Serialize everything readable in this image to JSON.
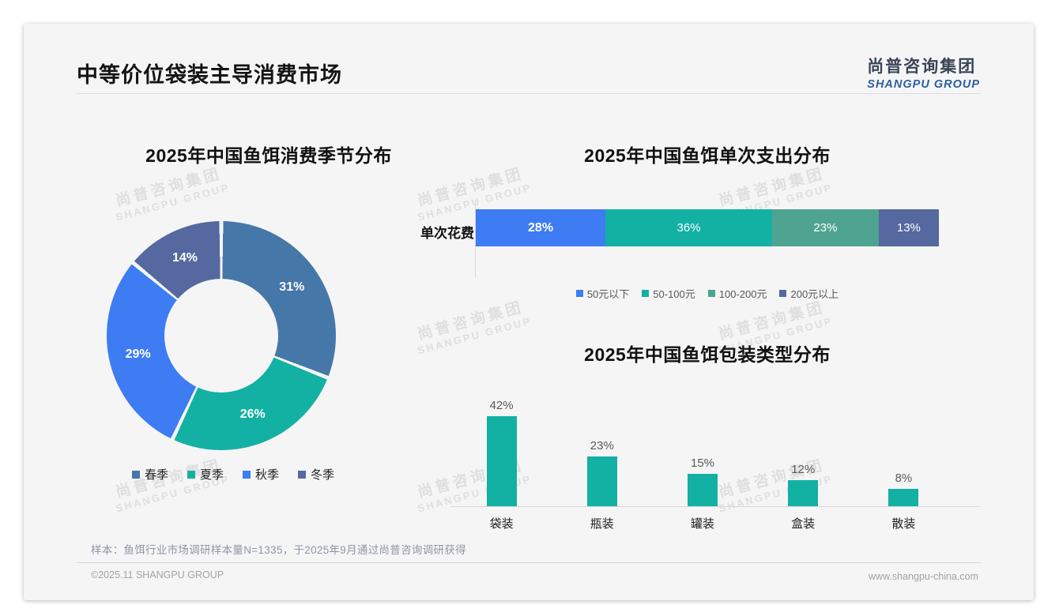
{
  "page": {
    "title": "中等价位袋装主导消费市场",
    "logo": {
      "cn": "尚普咨询集团",
      "en": "SHANGPU GROUP"
    },
    "watermark": {
      "cn": "尚普咨询集团",
      "en": "SHANGPU GROUP"
    },
    "footnote": "样本：鱼饵行业市场调研样本量N=1335，于2025年9月通过尚普咨询调研获得",
    "footer": {
      "left": "©2025.11 SHANGPU GROUP",
      "right": "www.shangpu-china.com"
    }
  },
  "colors": {
    "card_background": "#f5f5f6",
    "steel_blue": "#4677a9",
    "teal": "#12b1a3",
    "bright_blue": "#3d7cf2",
    "slate_indigo": "#55689f",
    "sage_green": "#4fa491",
    "logo_blue": "#2e5f9e",
    "value_label_gray": "#595959"
  },
  "chart_data": [
    {
      "type": "pie",
      "subtype": "donut",
      "title": "2025年中国鱼饵消费季节分布",
      "categories": [
        "春季",
        "夏季",
        "秋季",
        "冬季"
      ],
      "values": [
        31,
        26,
        29,
        14
      ],
      "labels": [
        "31%",
        "26%",
        "29%",
        "14%"
      ],
      "colors": [
        "#4677a9",
        "#12b1a3",
        "#3d7cf2",
        "#55689f"
      ],
      "start_angle_deg": 0,
      "direction": "clockwise",
      "legend_position": "bottom"
    },
    {
      "type": "bar",
      "subtype": "horizontal-stacked",
      "title": "2025年中国鱼饵单次支出分布",
      "row_label": "单次花费",
      "segments": [
        {
          "label": "50元以下",
          "value": 28,
          "display": "28%",
          "color": "#3d7cf2",
          "emphasis": true
        },
        {
          "label": "50-100元",
          "value": 36,
          "display": "36%",
          "color": "#12b1a3",
          "emphasis": false
        },
        {
          "label": "100-200元",
          "value": 23,
          "display": "23%",
          "color": "#4fa491",
          "emphasis": false
        },
        {
          "label": "200元以上",
          "value": 13,
          "display": "13%",
          "color": "#55689f",
          "emphasis": false
        }
      ],
      "xlim": [
        0,
        100
      ],
      "legend_position": "bottom"
    },
    {
      "type": "bar",
      "subtype": "vertical",
      "title": "2025年中国鱼饵包装类型分布",
      "categories": [
        "袋装",
        "瓶装",
        "罐装",
        "盒装",
        "散装"
      ],
      "values": [
        42,
        23,
        15,
        12,
        8
      ],
      "value_labels": [
        "42%",
        "23%",
        "15%",
        "12%",
        "8%"
      ],
      "bar_color": "#12b1a3",
      "ylim": [
        0,
        50
      ],
      "grid": false
    }
  ]
}
